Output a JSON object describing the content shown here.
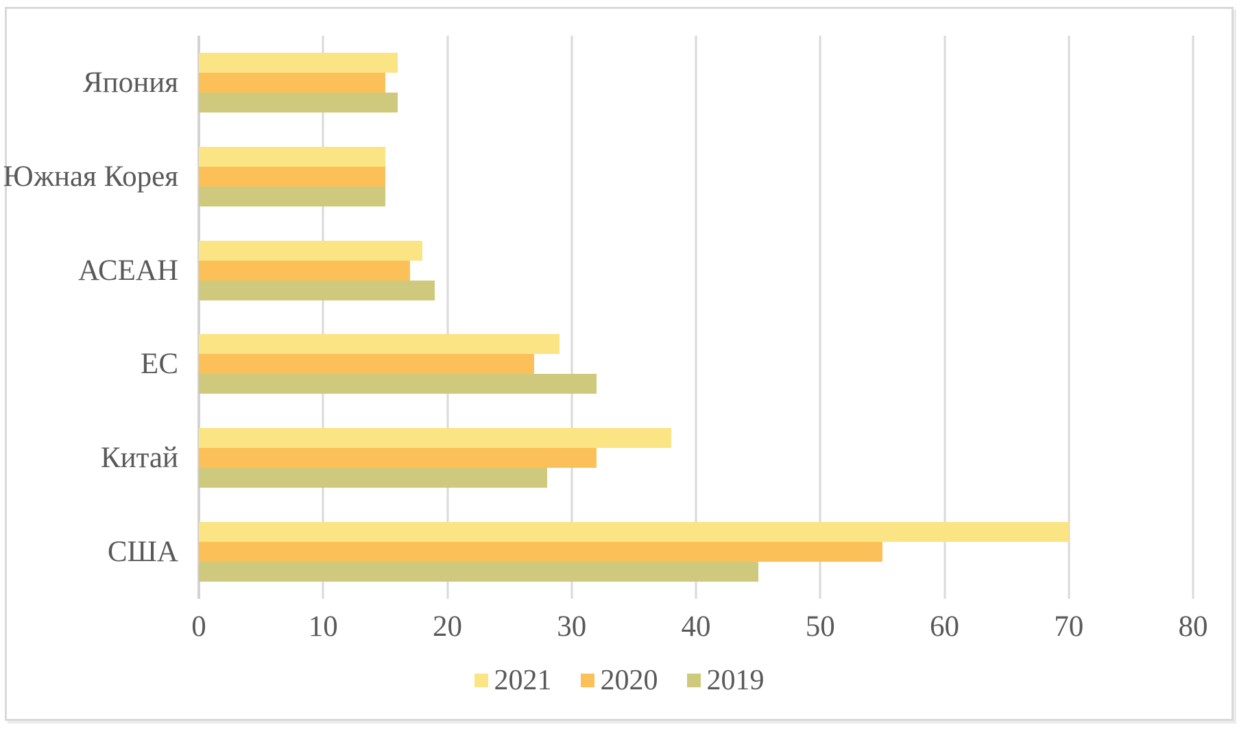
{
  "chart_data": {
    "type": "bar",
    "orientation": "horizontal",
    "title": "",
    "categories": [
      "Япония",
      "Южная Корея",
      "АСЕАН",
      "ЕС",
      "Китай",
      "США"
    ],
    "series": [
      {
        "name": "2021",
        "color": "#FBE483",
        "values": [
          16,
          15,
          18,
          29,
          38,
          70
        ]
      },
      {
        "name": "2020",
        "color": "#FBC158",
        "values": [
          15,
          15,
          17,
          27,
          32,
          55
        ]
      },
      {
        "name": "2019",
        "color": "#CEC97C",
        "values": [
          16,
          15,
          19,
          32,
          28,
          45
        ]
      }
    ],
    "x_axis": {
      "min": 0,
      "max": 80,
      "ticks": [
        0,
        10,
        20,
        30,
        40,
        50,
        60,
        70,
        80
      ]
    },
    "legend": {
      "position": "bottom",
      "entries": [
        "2021",
        "2020",
        "2019"
      ]
    },
    "grid": true
  },
  "styles": {
    "text_color": "#595959",
    "gridline_color": "#D9D9D9",
    "axis_line_color": "#D3D3D3",
    "frame_border_color": "#D9D9D9",
    "background": "#FFFFFF"
  }
}
